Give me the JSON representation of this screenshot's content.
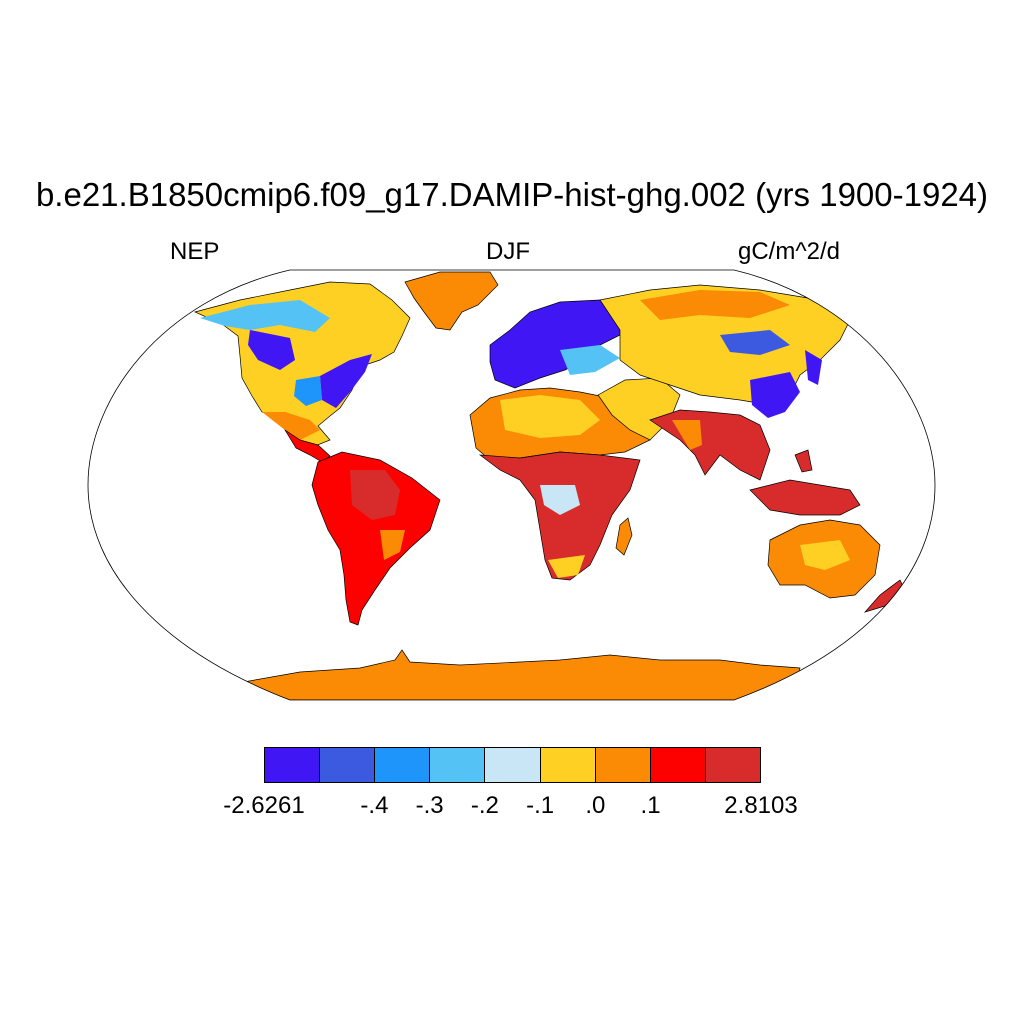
{
  "map": {
    "title": "b.e21.B1850cmip6.f09_g17.DAMIP-hist-ghg.002 (yrs 1900-1924)",
    "left_label": "NEP",
    "center_label": "DJF",
    "right_label": "gC/m^2/d",
    "projection": "Robinson",
    "colorbar": {
      "colors": [
        "#4016f5",
        "#3b5ae0",
        "#1e95fb",
        "#55c2f5",
        "#c9e6f6",
        "#fdd023",
        "#fb8a05",
        "#fd0000",
        "#d82c2c"
      ],
      "labels": [
        {
          "text": "-2.6261",
          "boundary": 0
        },
        {
          "text": "-.4",
          "boundary": 2
        },
        {
          "text": "-.3",
          "boundary": 3
        },
        {
          "text": "-.2",
          "boundary": 4
        },
        {
          "text": "-.1",
          "boundary": 5
        },
        {
          "text": ".0",
          "boundary": 6
        },
        {
          "text": ".1",
          "boundary": 7
        },
        {
          "text": "2.8103",
          "boundary": 9
        }
      ]
    }
  }
}
